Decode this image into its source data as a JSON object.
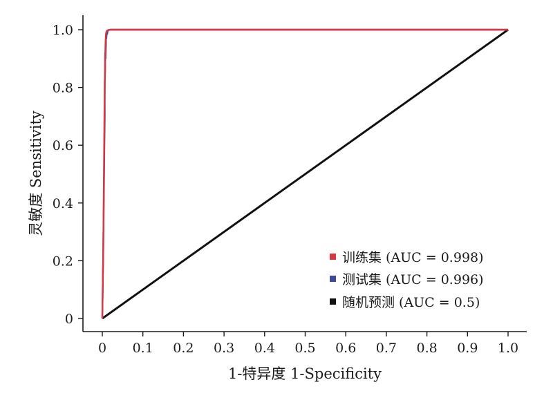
{
  "chart_data": {
    "type": "line",
    "xlabel": "1-特异度 1-Specificity",
    "ylabel": "灵敏度 Sensitivity",
    "xlim": [
      0,
      1
    ],
    "ylim": [
      0,
      1
    ],
    "x_ticks": [
      "0",
      "0.1",
      "0.2",
      "0.3",
      "0.4",
      "0.5",
      "0.6",
      "0.7",
      "0.8",
      "0.9",
      "1.0"
    ],
    "y_ticks": [
      "0",
      "0.2",
      "0.4",
      "0.6",
      "0.8",
      "1.0"
    ],
    "grid": false,
    "legend_position": "bottom-right",
    "series": [
      {
        "name": "训练集 (AUC =  0.998)",
        "color": "#d9363e",
        "x": [
          0,
          0.001,
          0.002,
          0.003,
          0.004,
          0.005,
          0.006,
          0.007,
          0.008,
          0.009,
          0.01,
          0.012,
          0.015,
          0.02,
          0.05,
          0.1,
          0.3,
          0.5,
          0.7,
          1.0
        ],
        "y": [
          0,
          0.1,
          0.2,
          0.33,
          0.5,
          0.68,
          0.8,
          0.9,
          0.96,
          0.985,
          0.993,
          0.997,
          0.999,
          1.0,
          1.0,
          1.0,
          1.0,
          1.0,
          1.0,
          1.0
        ]
      },
      {
        "name": "测试集 (AUC =  0.996)",
        "color": "#3b4a9a",
        "x": [
          0,
          0.002,
          0.004,
          0.005,
          0.006,
          0.006,
          0.007,
          0.007,
          0.008,
          0.009,
          0.009,
          0.01,
          0.011,
          0.012,
          0.013,
          0.015,
          0.02,
          0.05,
          1.0
        ],
        "y": [
          0,
          0.2,
          0.45,
          0.58,
          0.7,
          0.82,
          0.86,
          0.92,
          0.9,
          0.95,
          0.98,
          0.97,
          0.99,
          0.985,
          0.995,
          0.998,
          1.0,
          1.0,
          1.0
        ]
      },
      {
        "name": "随机预测 (AUC =  0.5)",
        "color": "#111111",
        "x": [
          0,
          1
        ],
        "y": [
          0,
          1
        ]
      }
    ]
  }
}
